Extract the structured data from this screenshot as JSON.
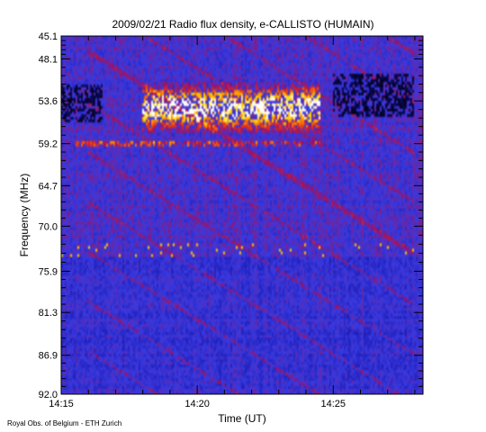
{
  "chart_data": {
    "type": "heatmap",
    "title": "2009/02/21  Radio flux density, e-CALLISTO (HUMAIN)",
    "xlabel": "Time (UT)",
    "ylabel": "Frequency (MHz)",
    "x_ticks": [
      "14:15",
      "14:20",
      "14:25"
    ],
    "x_tick_minutes": [
      0,
      5,
      10
    ],
    "xlim_minutes": [
      0,
      13.3
    ],
    "y_ticks": [
      "45.1",
      "48.1",
      "53.6",
      "59.2",
      "64.7",
      "70.0",
      "75.9",
      "81.3",
      "86.9",
      "92.0"
    ],
    "y_tick_values": [
      45.1,
      48.1,
      53.6,
      59.2,
      64.7,
      70.0,
      75.9,
      81.3,
      86.9,
      92.0
    ],
    "ylim": [
      45.1,
      92.0
    ],
    "y_inverted": true,
    "colormap": [
      "#000000",
      "#0b0b6e",
      "#1d1db8",
      "#3a3ae0",
      "#a01060",
      "#e03020",
      "#ff8a00",
      "#ffe000",
      "#ffffff"
    ],
    "grid": false
  },
  "footer": {
    "credit": "Royal Obs. of Belgium - ETH Zurich"
  }
}
